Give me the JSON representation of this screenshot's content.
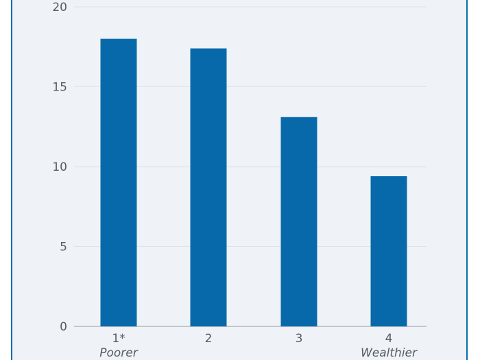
{
  "chart_data": {
    "type": "bar",
    "categories": [
      "1*",
      "2",
      "3",
      "4"
    ],
    "category_sublabels": [
      "Poorer",
      "",
      "",
      "Wealthier"
    ],
    "values": [
      18.0,
      17.4,
      13.1,
      9.4
    ],
    "ylim": [
      0,
      20
    ],
    "yticks": [
      0,
      5,
      10,
      15,
      20
    ],
    "grid": true,
    "colors": {
      "bar": "#0869aa",
      "grid": "#dde3ea",
      "axis": "#a9adb2",
      "background": "#eff2f7"
    },
    "title": "",
    "xlabel": "",
    "ylabel": ""
  }
}
